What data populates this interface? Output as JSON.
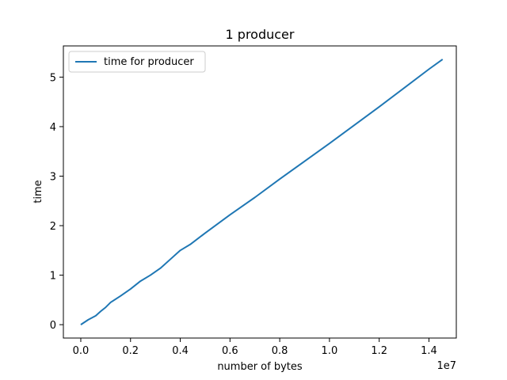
{
  "chart_data": {
    "type": "line",
    "title": "1 producer",
    "xlabel": "number of bytes",
    "ylabel": "time",
    "x_offset_label": "1e7",
    "xlim": [
      -0.07,
      1.51
    ],
    "ylim": [
      -0.27,
      5.63
    ],
    "x_ticks": [
      0.0,
      0.2,
      0.4,
      0.6,
      0.8,
      1.0,
      1.2,
      1.4
    ],
    "x_tick_labels": [
      "0.0",
      "0.2",
      "0.4",
      "0.6",
      "0.8",
      "1.0",
      "1.2",
      "1.4"
    ],
    "y_ticks": [
      0,
      1,
      2,
      3,
      4,
      5
    ],
    "y_tick_labels": [
      "0",
      "1",
      "2",
      "3",
      "4",
      "5"
    ],
    "grid": false,
    "legend": {
      "position": "upper-left",
      "entries": [
        "time for producer"
      ]
    },
    "series": [
      {
        "name": "time for producer",
        "color": "#1f77b4",
        "x": [
          0.0,
          0.03,
          0.06,
          0.08,
          0.1,
          0.12,
          0.16,
          0.2,
          0.24,
          0.28,
          0.32,
          0.36,
          0.4,
          0.44,
          0.5,
          0.6,
          0.7,
          0.8,
          0.9,
          1.0,
          1.1,
          1.2,
          1.3,
          1.4,
          1.455
        ],
        "y": [
          0.0,
          0.1,
          0.18,
          0.27,
          0.35,
          0.45,
          0.58,
          0.72,
          0.88,
          1.0,
          1.14,
          1.32,
          1.5,
          1.62,
          1.85,
          2.22,
          2.57,
          2.94,
          3.3,
          3.66,
          4.03,
          4.4,
          4.78,
          5.16,
          5.36
        ]
      }
    ]
  }
}
